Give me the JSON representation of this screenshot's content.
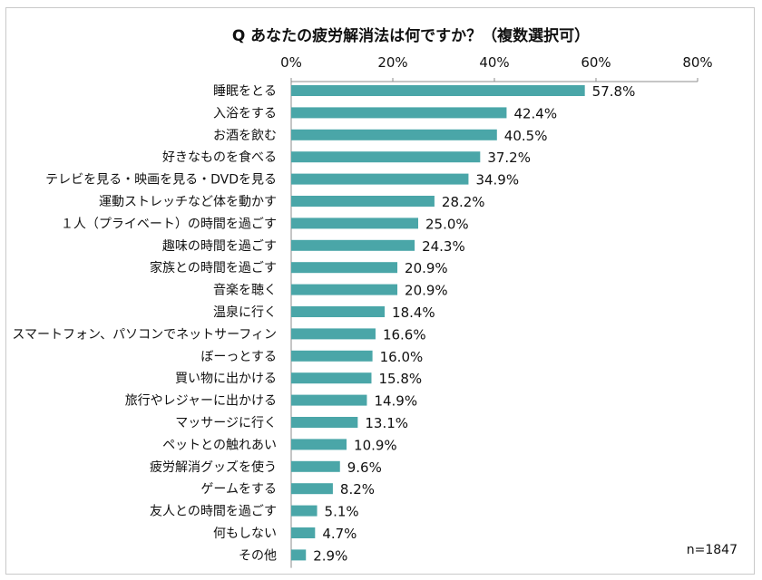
{
  "chart_data": {
    "type": "bar",
    "orientation": "horizontal",
    "title": "Q あなたの疲労解消法は何ですか？（複数選択可）",
    "note": "n=1847",
    "xlim": [
      0,
      80
    ],
    "ticks": [
      0,
      20,
      40,
      60,
      80
    ],
    "tick_labels": [
      "0%",
      "20%",
      "40%",
      "60%",
      "80%"
    ],
    "tick_position": "top",
    "bar_color": "#4aa6a8",
    "categories": [
      "睡眠をとる",
      "入浴をする",
      "お酒を飲む",
      "好きなものを食べる",
      "テレビを見る・映画を見る・DVDを見る",
      "運動ストレッチなど体を動かす",
      "１人（プライベート）の時間を過ごす",
      "趣味の時間を過ごす",
      "家族との時間を過ごす",
      "音楽を聴く",
      "温泉に行く",
      "スマートフォン、パソコンでネットサーフィン",
      "ぼーっとする",
      "買い物に出かける",
      "旅行やレジャーに出かける",
      "マッサージに行く",
      "ペットとの触れあい",
      "疲労解消グッズを使う",
      "ゲームをする",
      "友人との時間を過ごす",
      "何もしない",
      "その他"
    ],
    "values": [
      57.8,
      42.4,
      40.5,
      37.2,
      34.9,
      28.2,
      25.0,
      24.3,
      20.9,
      20.9,
      18.4,
      16.6,
      16.0,
      15.8,
      14.9,
      13.1,
      10.9,
      9.6,
      8.2,
      5.1,
      4.7,
      2.9
    ],
    "value_labels": [
      "57.8%",
      "42.4%",
      "40.5%",
      "37.2%",
      "34.9%",
      "28.2%",
      "25.0%",
      "24.3%",
      "20.9%",
      "20.9%",
      "18.4%",
      "16.6%",
      "16.0%",
      "15.8%",
      "14.9%",
      "13.1%",
      "10.9%",
      "9.6%",
      "8.2%",
      "5.1%",
      "4.7%",
      "2.9%"
    ]
  }
}
